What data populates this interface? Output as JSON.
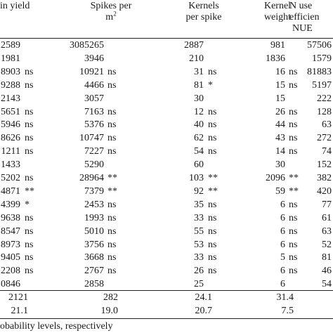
{
  "table": {
    "headers": {
      "grain_yield": [
        "in yield"
      ],
      "spikes": [
        "Spikes per",
        "m",
        "2"
      ],
      "kernels": [
        "Kernels",
        "per spike"
      ],
      "kernel_weight": [
        "Kernel",
        "weight"
      ],
      "nue": [
        "N use",
        "efficien",
        "NUE"
      ]
    },
    "rows": [
      {
        "gy": "2589",
        "gy_s": "",
        "sp": "3085265",
        "sp_s": "",
        "kp": "2887",
        "kp_s": "",
        "kw": "981",
        "kw_s": "",
        "nue": "57506"
      },
      {
        "gy": "1981",
        "gy_s": "",
        "sp": "3946",
        "sp_s": "",
        "kp": "210",
        "kp_s": "",
        "kw": "1836",
        "kw_s": "",
        "nue": "1579"
      },
      {
        "gy": "8903",
        "gy_s": "ns",
        "sp": "10921",
        "sp_s": "ns",
        "kp": "31",
        "kp_s": "ns",
        "kw": "16",
        "kw_s": "ns",
        "nue": "81883"
      },
      {
        "gy": "9288",
        "gy_s": "ns",
        "sp": "4466",
        "sp_s": "ns",
        "kp": "81",
        "kp_s": "*",
        "kw": "15",
        "kw_s": "ns",
        "nue": "5197"
      },
      {
        "gy": "2143",
        "gy_s": "",
        "sp": "3057",
        "sp_s": "",
        "kp": "30",
        "kp_s": "",
        "kw": "15",
        "kw_s": "",
        "nue": "222"
      },
      {
        "gy": "5651",
        "gy_s": "ns",
        "sp": "7163",
        "sp_s": "ns",
        "kp": "12",
        "kp_s": "ns",
        "kw": "26",
        "kw_s": "ns",
        "nue": "128"
      },
      {
        "gy": "5946",
        "gy_s": "ns",
        "sp": "5376",
        "sp_s": "ns",
        "kp": "40",
        "kp_s": "ns",
        "kw": "44",
        "kw_s": "ns",
        "nue": "63"
      },
      {
        "gy": "8626",
        "gy_s": "ns",
        "sp": "10747",
        "sp_s": "ns",
        "kp": "62",
        "kp_s": "ns",
        "kw": "43",
        "kw_s": "ns",
        "nue": "272"
      },
      {
        "gy": "1211",
        "gy_s": "ns",
        "sp": "7227",
        "sp_s": "ns",
        "kp": "54",
        "kp_s": "ns",
        "kw": "14",
        "kw_s": "ns",
        "nue": "74"
      },
      {
        "gy": "1433",
        "gy_s": "",
        "sp": "5290",
        "sp_s": "",
        "kp": "60",
        "kp_s": "",
        "kw": "30",
        "kw_s": "",
        "nue": "152"
      },
      {
        "gy": "5202",
        "gy_s": "ns",
        "sp": "28964",
        "sp_s": "**",
        "kp": "103",
        "kp_s": "**",
        "kw": "2096",
        "kw_s": "**",
        "nue": "382"
      },
      {
        "gy": "4871",
        "gy_s": "**",
        "sp": "7379",
        "sp_s": "**",
        "kp": "92",
        "kp_s": "**",
        "kw": "59",
        "kw_s": "**",
        "nue": "420"
      },
      {
        "gy": "4399",
        "gy_s": "*",
        "sp": "2453",
        "sp_s": "ns",
        "kp": "35",
        "kp_s": "ns",
        "kw": "6",
        "kw_s": "ns",
        "nue": "77"
      },
      {
        "gy": "9638",
        "gy_s": "ns",
        "sp": "1993",
        "sp_s": "ns",
        "kp": "33",
        "kp_s": "ns",
        "kw": "6",
        "kw_s": "ns",
        "nue": "61"
      },
      {
        "gy": "8547",
        "gy_s": "ns",
        "sp": "5010",
        "sp_s": "ns",
        "kp": "55",
        "kp_s": "ns",
        "kw": "6",
        "kw_s": "ns",
        "nue": "63"
      },
      {
        "gy": "8973",
        "gy_s": "ns",
        "sp": "3756",
        "sp_s": "ns",
        "kp": "53",
        "kp_s": "ns",
        "kw": "6",
        "kw_s": "ns",
        "nue": "52"
      },
      {
        "gy": "9405",
        "gy_s": "ns",
        "sp": "3668",
        "sp_s": "ns",
        "kp": "33",
        "kp_s": "ns",
        "kw": "5",
        "kw_s": "ns",
        "nue": "81"
      },
      {
        "gy": "2208",
        "gy_s": "ns",
        "sp": "2767",
        "sp_s": "ns",
        "kp": "26",
        "kp_s": "ns",
        "kw": "6",
        "kw_s": "ns",
        "nue": "46"
      },
      {
        "gy": "0846",
        "gy_s": "",
        "sp": "2858",
        "sp_s": "",
        "kp": "25",
        "kp_s": "",
        "kw": "6",
        "kw_s": "",
        "nue": "54"
      }
    ],
    "summary": [
      {
        "gy": "2121",
        "sp": "282",
        "kp": "24.1",
        "kw": "31.4",
        "nue": ""
      },
      {
        "gy": "21.1",
        "sp": "19.0",
        "kp": "20.7",
        "kw": "7.5",
        "nue": ""
      }
    ]
  },
  "footnote": "obability levels, respectively"
}
